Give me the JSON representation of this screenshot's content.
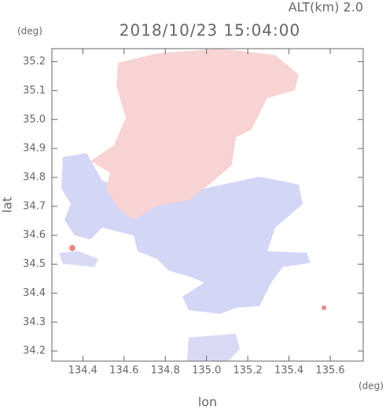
{
  "chart_data": {
    "type": "map",
    "title": "2018/10/23 15:04:00",
    "subtitle": "ALT(km)  2.0",
    "x_label": "lon",
    "y_label": "lat",
    "x_unit": "(deg)",
    "y_unit": "(deg)",
    "xlim": [
      134.25,
      135.76
    ],
    "ylim": [
      34.165,
      35.245
    ],
    "xticks": [
      {
        "value": 134.4,
        "label": "134.4"
      },
      {
        "value": 134.6,
        "label": "134.6"
      },
      {
        "value": 134.8,
        "label": "134.8"
      },
      {
        "value": 135.0,
        "label": "135.0"
      },
      {
        "value": 135.2,
        "label": "135.2"
      },
      {
        "value": 135.4,
        "label": "135.4"
      },
      {
        "value": 135.6,
        "label": "135.6"
      }
    ],
    "yticks": [
      {
        "value": 34.2,
        "label": "34.2"
      },
      {
        "value": 34.3,
        "label": "34.3"
      },
      {
        "value": 34.4,
        "label": "34.4"
      },
      {
        "value": 34.5,
        "label": "34.5"
      },
      {
        "value": 34.6,
        "label": "34.6"
      },
      {
        "value": 34.7,
        "label": "34.7"
      },
      {
        "value": 34.8,
        "label": "34.8"
      },
      {
        "value": 34.9,
        "label": "34.9"
      },
      {
        "value": 35.0,
        "label": "35.0"
      },
      {
        "value": 35.1,
        "label": "35.1"
      },
      {
        "value": 35.2,
        "label": "35.2"
      }
    ]
  }
}
